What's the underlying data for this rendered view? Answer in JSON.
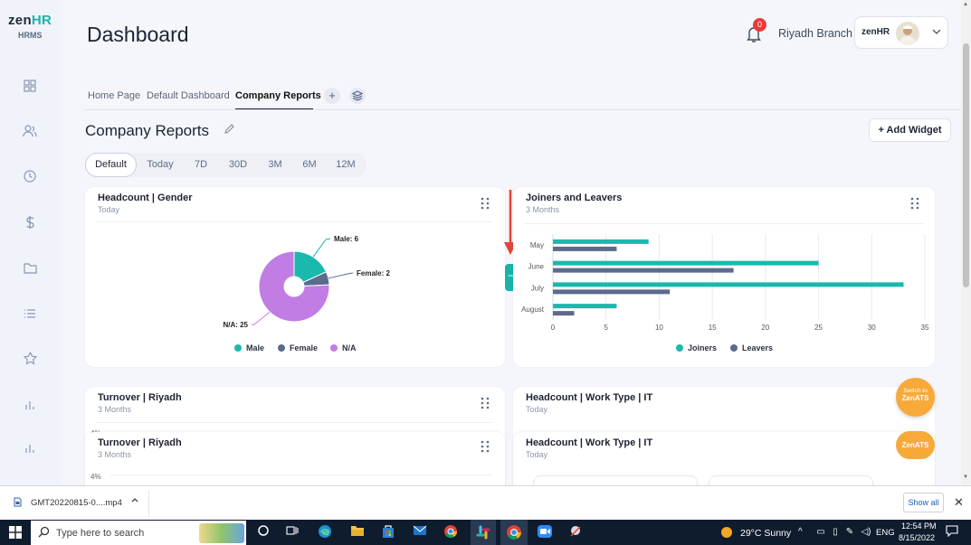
{
  "sidebar": {
    "logo_main": "zen",
    "logo_accent": "HR",
    "logo_sub": "HRMS",
    "icons": [
      "grid-icon",
      "users-icon",
      "clock-icon",
      "dollar-icon",
      "folder-icon",
      "list-icon",
      "star-icon",
      "bar-chart-icon",
      "bar-chart-icon"
    ]
  },
  "header": {
    "title": "Dashboard",
    "notifications": "0",
    "branch": "Riyadh Branch",
    "user_logo": "zenHR"
  },
  "tabs": {
    "items": [
      "Home Page",
      "Default Dashboard",
      "Company Reports"
    ],
    "active": "Company Reports"
  },
  "section": {
    "title": "Company Reports",
    "add_widget": "+ Add Widget"
  },
  "filters": [
    "Default",
    "Today",
    "7D",
    "30D",
    "3M",
    "6M",
    "12M"
  ],
  "cards": {
    "headcount_gender": {
      "title": "Headcount | Gender",
      "subtitle": "Today"
    },
    "joiners_leavers": {
      "title": "Joiners and Leavers",
      "subtitle": "3 Months"
    },
    "turnover_1": {
      "title": "Turnover | Riyadh",
      "subtitle": "3 Months",
      "axis_label": "4%"
    },
    "turnover_2": {
      "title": "Turnover | Riyadh",
      "subtitle": "3 Months",
      "axis_label": "4%"
    },
    "worktype_1": {
      "title": "Headcount | Work Type | IT",
      "subtitle": "Today"
    },
    "worktype_2": {
      "title": "Headcount | Work Type | IT",
      "subtitle": "Today"
    }
  },
  "chart_data": [
    {
      "type": "pie",
      "labels": [
        "Male",
        "Female",
        "N/A"
      ],
      "values": [
        6,
        2,
        25
      ],
      "data_labels": [
        "Male: 6",
        "Female: 2",
        "N/A: 25"
      ],
      "colors": [
        "#1bb8ae",
        "#5b6b8c",
        "#c17de3"
      ],
      "legend": "bottom"
    },
    {
      "type": "bar",
      "orientation": "horizontal",
      "categories": [
        "May",
        "June",
        "July",
        "August"
      ],
      "series": [
        {
          "name": "Joiners",
          "values": [
            9,
            25,
            33,
            6
          ],
          "color": "#1bb8ae"
        },
        {
          "name": "Leavers",
          "values": [
            6,
            17,
            11,
            2
          ],
          "color": "#5b6b8c"
        }
      ],
      "xlim": [
        0,
        35
      ],
      "xticks": [
        "0",
        "5",
        "10",
        "15",
        "20",
        "25",
        "30",
        "35"
      ],
      "grid": true,
      "legend": "bottom"
    }
  ],
  "zenats": {
    "switch_line1": "Switch to",
    "switch_line2": "ZenATS",
    "label": "ZenATS"
  },
  "download_bar": {
    "file": "GMT20220815-0....mp4",
    "show_all": "Show all"
  },
  "taskbar": {
    "search_placeholder": "Type here to search",
    "weather": "29°C  Sunny",
    "lang": "ENG",
    "time": "12:54 PM",
    "date": "8/15/2022"
  }
}
